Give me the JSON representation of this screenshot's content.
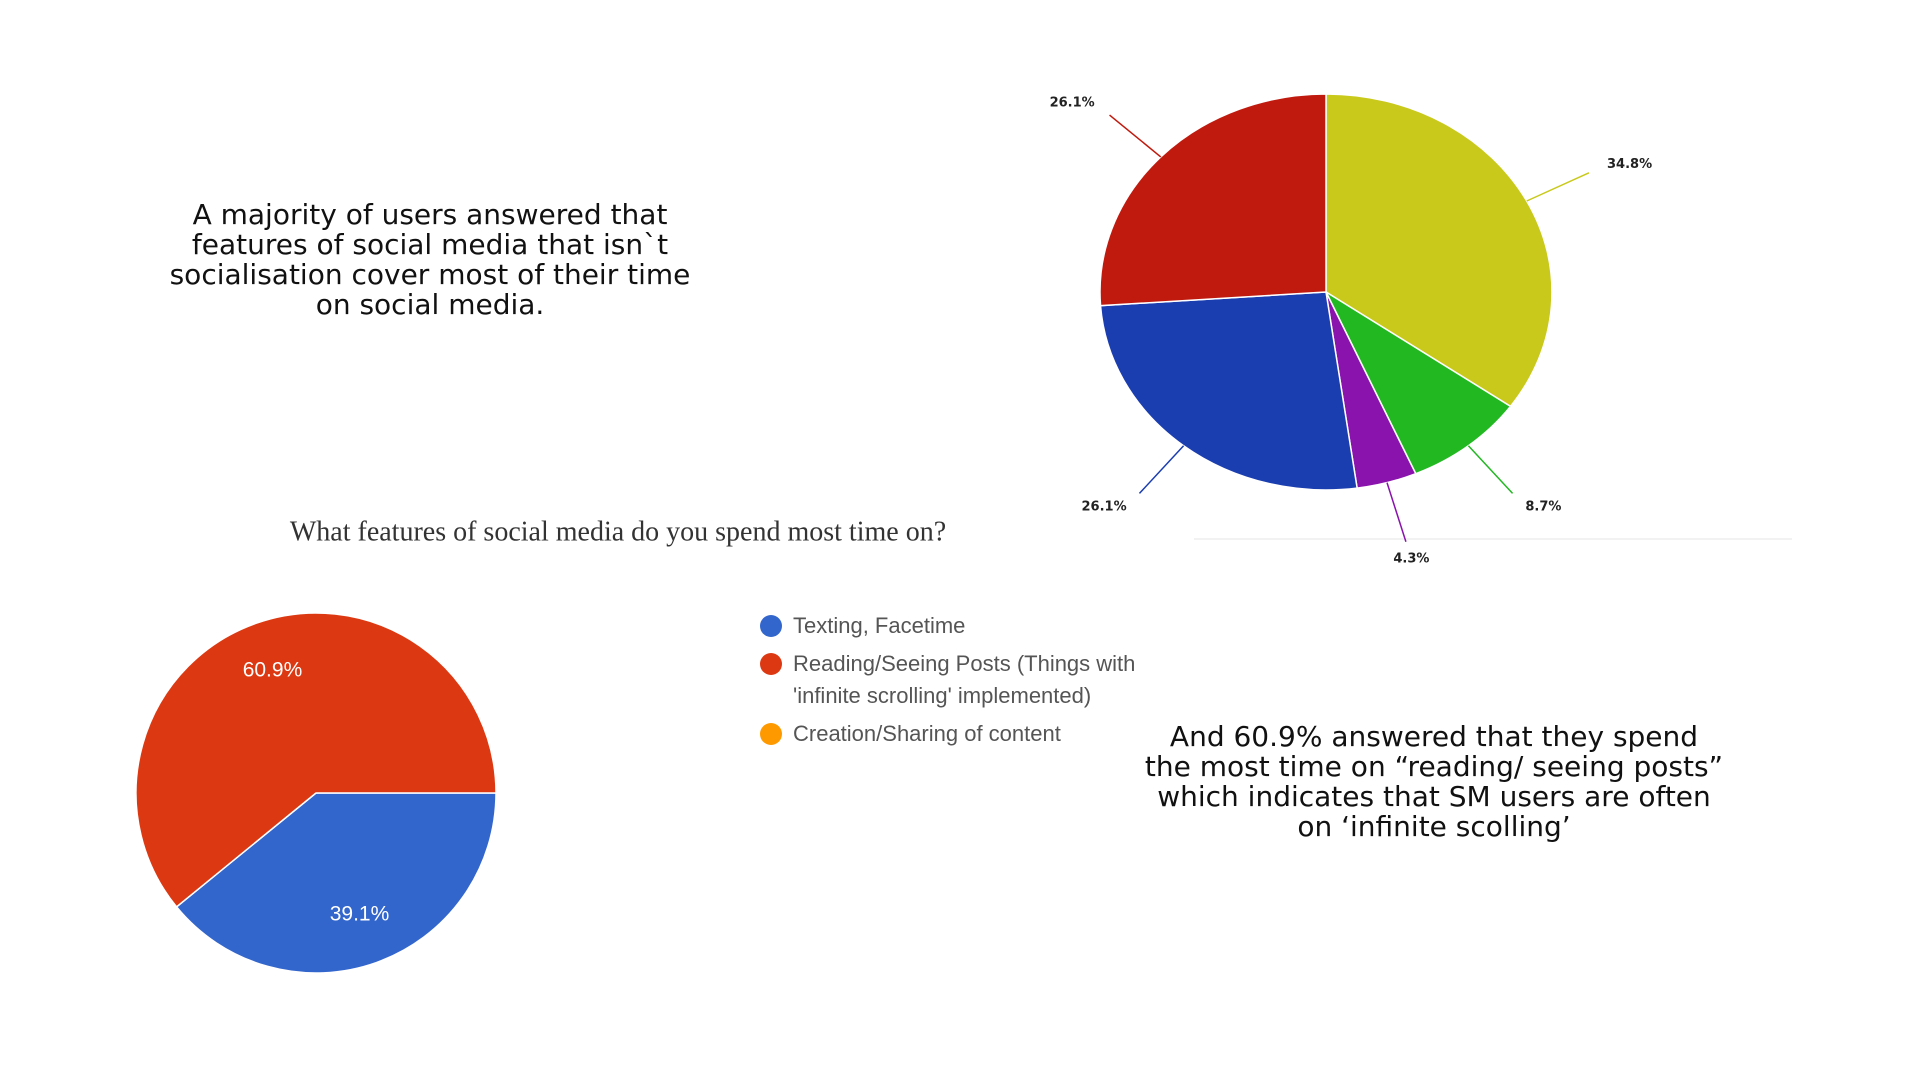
{
  "chart_data": [
    {
      "type": "pie",
      "values": [
        34.8,
        8.7,
        4.3,
        26.1,
        26.1
      ],
      "value_labels": [
        "34.8%",
        "8.7%",
        "4.3%",
        "26.1%",
        "26.1%"
      ],
      "colors": [
        "#c9c91c",
        "#22b822",
        "#8a12ad",
        "#1a3db0",
        "#c01a0e"
      ]
    },
    {
      "type": "pie",
      "title": "What features of social media do you spend most time on?",
      "categories": [
        "Texting, Facetime",
        "Reading/Seeing Posts (Things with 'infinite scrolling' implemented)",
        "Creation/Sharing of content"
      ],
      "values": [
        39.1,
        60.9,
        0
      ],
      "value_labels": [
        "39.1%",
        "60.9%",
        null
      ],
      "colors": [
        "#3366cc",
        "#dc3912",
        "#ff9900"
      ],
      "legend": "right"
    }
  ],
  "notes": [
    "A majority of users answered that features of social media that isn`t socialisation cover most of their time on social media.",
    "And 60.9% answered that they spend the most time on “reading/ seeing posts” which indicates that SM users are often on ‘infinite scolling’"
  ]
}
